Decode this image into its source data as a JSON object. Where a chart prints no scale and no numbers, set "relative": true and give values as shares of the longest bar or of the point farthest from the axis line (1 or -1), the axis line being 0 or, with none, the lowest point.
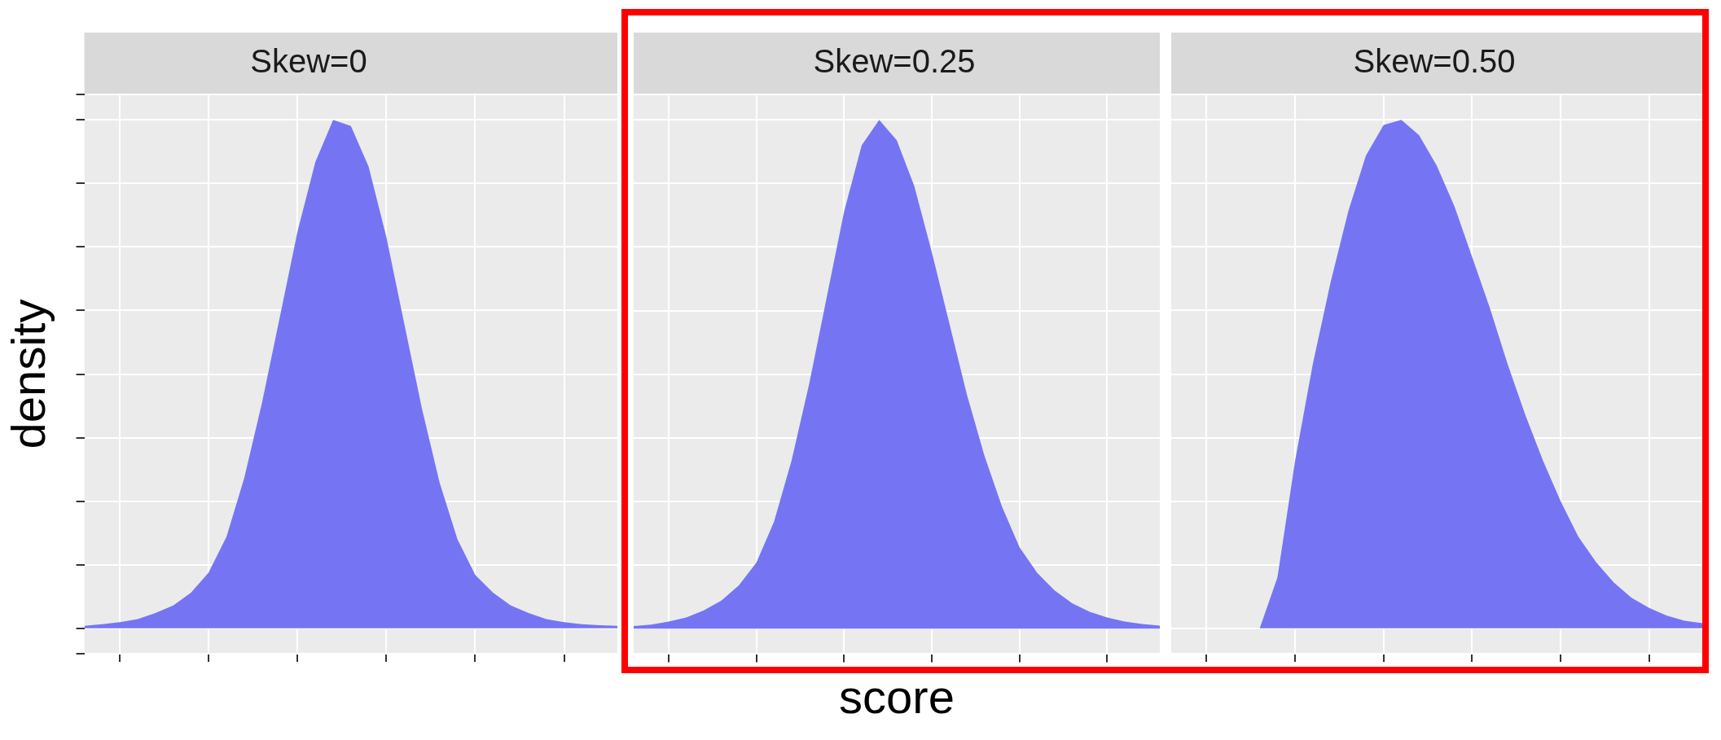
{
  "chart_data": [
    {
      "type": "area",
      "title": "Skew=0",
      "ylabel": "density",
      "relative": true,
      "grid": true,
      "tick_labels": false,
      "categories": [
        null,
        null,
        null,
        null,
        null,
        null,
        null,
        null,
        null,
        null,
        null,
        null,
        null,
        null,
        null,
        null,
        null,
        null,
        null,
        null,
        null,
        null,
        null,
        null,
        null,
        null,
        null,
        null,
        null,
        null,
        null
      ],
      "series": [
        {
          "color": "#7575f3",
          "values": [
            0.005,
            0.008,
            0.012,
            0.018,
            0.03,
            0.045,
            0.07,
            0.11,
            0.18,
            0.296,
            0.444,
            0.612,
            0.781,
            0.917,
            1,
            0.988,
            0.908,
            0.769,
            0.6,
            0.432,
            0.286,
            0.175,
            0.105,
            0.07,
            0.045,
            0.03,
            0.018,
            0.012,
            0.008,
            0.006,
            0.005
          ]
        }
      ]
    },
    {
      "type": "area",
      "title": "Skew=0.25",
      "xlabel": "score",
      "relative": true,
      "grid": true,
      "tick_labels": false,
      "categories": [
        null,
        null,
        null,
        null,
        null,
        null,
        null,
        null,
        null,
        null,
        null,
        null,
        null,
        null,
        null,
        null,
        null,
        null,
        null,
        null,
        null,
        null,
        null,
        null,
        null,
        null,
        null,
        null,
        null,
        null,
        null
      ],
      "series": [
        {
          "color": "#7575f3",
          "values": [
            0.005,
            0.008,
            0.014,
            0.022,
            0.036,
            0.055,
            0.085,
            0.13,
            0.21,
            0.33,
            0.48,
            0.65,
            0.82,
            0.95,
            1,
            0.96,
            0.87,
            0.74,
            0.6,
            0.46,
            0.34,
            0.24,
            0.16,
            0.11,
            0.075,
            0.05,
            0.033,
            0.022,
            0.014,
            0.009,
            0.006
          ]
        }
      ]
    },
    {
      "type": "area",
      "title": "Skew=0.50",
      "relative": true,
      "grid": true,
      "tick_labels": false,
      "categories": [
        null,
        null,
        null,
        null,
        null,
        null,
        null,
        null,
        null,
        null,
        null,
        null,
        null,
        null,
        null,
        null,
        null,
        null,
        null,
        null,
        null,
        null,
        null,
        null,
        null,
        null,
        null,
        null,
        null,
        null,
        null
      ],
      "series": [
        {
          "color": "#7575f3",
          "values": [
            0,
            0,
            0,
            0,
            0,
            0,
            0.1,
            0.33,
            0.52,
            0.68,
            0.82,
            0.93,
            0.99,
            1,
            0.97,
            0.91,
            0.83,
            0.73,
            0.63,
            0.52,
            0.42,
            0.33,
            0.25,
            0.18,
            0.13,
            0.09,
            0.06,
            0.04,
            0.025,
            0.015,
            0.01
          ]
        }
      ]
    }
  ]
}
